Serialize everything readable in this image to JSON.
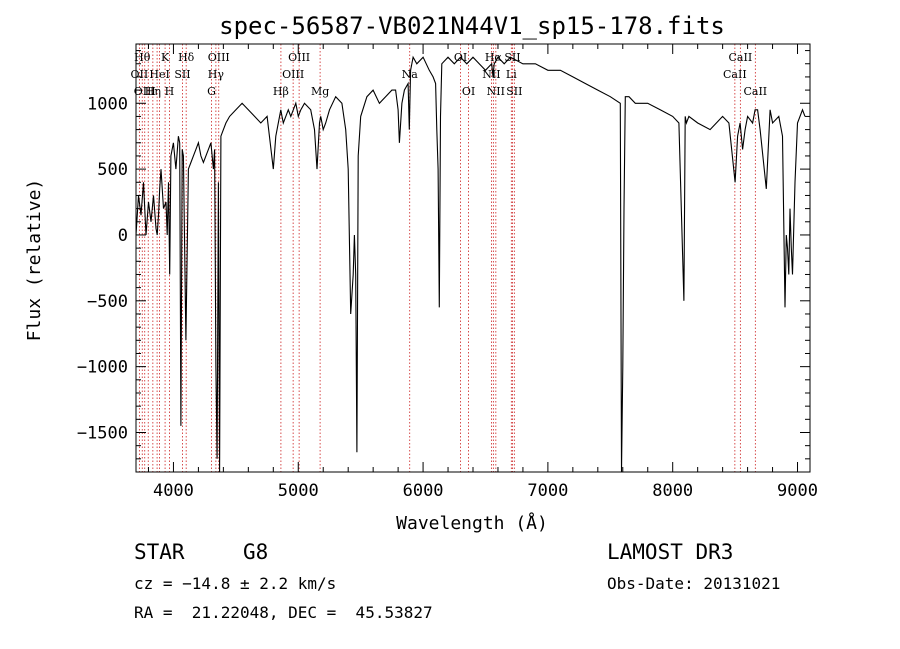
{
  "chart_data": {
    "type": "line",
    "title": "spec-56587-VB021N44V1_sp15-178.fits",
    "xlabel": "Wavelength (Å)",
    "ylabel": "Flux (relative)",
    "xlim": [
      3700,
      9100
    ],
    "ylim": [
      -1800,
      1450
    ],
    "xticks": [
      4000,
      5000,
      6000,
      7000,
      8000,
      9000
    ],
    "yticks": [
      -1500,
      -1000,
      -500,
      0,
      500,
      1000
    ],
    "xtick_labels": [
      "4000",
      "5000",
      "6000",
      "7000",
      "8000",
      "9000"
    ],
    "ytick_labels": [
      "−1500",
      "−1000",
      "−500",
      "0",
      "500",
      "1000"
    ],
    "grid": false,
    "series": [
      {
        "x": [
          3700,
          3720,
          3740,
          3760,
          3780,
          3800,
          3820,
          3840,
          3860,
          3870,
          3880,
          3890,
          3900,
          3920,
          3940,
          3950,
          3960,
          3970,
          3980,
          4000,
          4020,
          4040,
          4050,
          4060,
          4070,
          4080,
          4100,
          4120,
          4140,
          4160,
          4180,
          4200,
          4220,
          4240,
          4260,
          4280,
          4300,
          4320,
          4330,
          4340,
          4350,
          4360,
          4370,
          4380,
          4400,
          4420,
          4450,
          4500,
          4550,
          4600,
          4650,
          4700,
          4750,
          4800,
          4820,
          4840,
          4860,
          4870,
          4880,
          4900,
          4920,
          4940,
          4960,
          4980,
          5000,
          5020,
          5050,
          5100,
          5130,
          5150,
          5170,
          5180,
          5190,
          5200,
          5220,
          5250,
          5300,
          5350,
          5380,
          5400,
          5420,
          5440,
          5450,
          5460,
          5470,
          5480,
          5500,
          5550,
          5600,
          5650,
          5700,
          5750,
          5780,
          5800,
          5810,
          5830,
          5850,
          5880,
          5890,
          5900,
          5920,
          5950,
          6000,
          6050,
          6080,
          6100,
          6110,
          6120,
          6130,
          6140,
          6150,
          6200,
          6250,
          6300,
          6350,
          6400,
          6450,
          6500,
          6550,
          6560,
          6570,
          6600,
          6650,
          6700,
          6800,
          6900,
          7000,
          7100,
          7200,
          7300,
          7400,
          7500,
          7580,
          7590,
          7600,
          7610,
          7620,
          7650,
          7700,
          7800,
          7900,
          8000,
          8050,
          8090,
          8100,
          8110,
          8130,
          8200,
          8300,
          8400,
          8450,
          8500,
          8520,
          8540,
          8560,
          8580,
          8600,
          8640,
          8660,
          8680,
          8700,
          8750,
          8780,
          8800,
          8850,
          8880,
          8900,
          8910,
          8920,
          8930,
          8940,
          8950,
          8960,
          8980,
          9000,
          9040,
          9060
        ],
        "y": [
          0,
          300,
          150,
          400,
          0,
          250,
          100,
          300,
          50,
          0,
          150,
          350,
          500,
          200,
          250,
          0,
          400,
          -300,
          600,
          700,
          500,
          750,
          700,
          -1450,
          650,
          600,
          -800,
          500,
          550,
          600,
          650,
          700,
          600,
          550,
          600,
          650,
          700,
          500,
          650,
          -1000,
          -1700,
          400,
          -1800,
          750,
          800,
          850,
          900,
          950,
          1000,
          950,
          900,
          850,
          900,
          500,
          750,
          850,
          950,
          900,
          850,
          900,
          950,
          900,
          950,
          1000,
          900,
          950,
          1000,
          950,
          800,
          500,
          850,
          900,
          850,
          800,
          850,
          950,
          1050,
          1000,
          800,
          500,
          -600,
          -300,
          0,
          -300,
          -1650,
          600,
          900,
          1050,
          1100,
          1000,
          1050,
          1100,
          1100,
          950,
          700,
          1000,
          1100,
          1150,
          800,
          1250,
          1350,
          1300,
          1350,
          1250,
          1200,
          1150,
          800,
          500,
          -550,
          900,
          1300,
          1350,
          1300,
          1350,
          1300,
          1350,
          1300,
          1250,
          1300,
          1200,
          1300,
          1350,
          1300,
          1350,
          1300,
          1300,
          1250,
          1250,
          1200,
          1150,
          1100,
          1050,
          1000,
          -1800,
          -1000,
          200,
          1050,
          1050,
          1000,
          1000,
          950,
          900,
          850,
          -500,
          900,
          850,
          900,
          850,
          800,
          900,
          850,
          400,
          750,
          850,
          650,
          800,
          900,
          850,
          950,
          950,
          800,
          350,
          950,
          850,
          900,
          750,
          -550,
          0,
          -100,
          -300,
          200,
          -100,
          -300,
          400,
          850,
          950,
          900
        ]
      }
    ],
    "markers": [
      {
        "x": 3727,
        "label": "OII",
        "label_level": 2
      },
      {
        "x": 3750,
        "label": "Hθ",
        "label_level": 1
      },
      {
        "x": 3770,
        "label": "OIII",
        "label_level": 3
      },
      {
        "x": 3798,
        "label": "",
        "label_level": 0
      },
      {
        "x": 3835,
        "label": "Hη",
        "label_level": 3
      },
      {
        "x": 3869,
        "label": "",
        "label_level": 0
      },
      {
        "x": 3889,
        "label": "HeI",
        "label_level": 2
      },
      {
        "x": 3933,
        "label": "K",
        "label_level": 1
      },
      {
        "x": 3968,
        "label": "H",
        "label_level": 3
      },
      {
        "x": 4072,
        "label": "SII",
        "label_level": 2
      },
      {
        "x": 4102,
        "label": "Hδ",
        "label_level": 1
      },
      {
        "x": 4340,
        "label": "Hγ",
        "label_level": 2
      },
      {
        "x": 4363,
        "label": "OIII",
        "label_level": 1
      },
      {
        "x": 4305,
        "label": "G",
        "label_level": 3
      },
      {
        "x": 4861,
        "label": "Hβ",
        "label_level": 3
      },
      {
        "x": 4959,
        "label": "OIII",
        "label_level": 2
      },
      {
        "x": 5007,
        "label": "OIII",
        "label_level": 1
      },
      {
        "x": 5175,
        "label": "Mg",
        "label_level": 3
      },
      {
        "x": 5893,
        "label": "Na",
        "label_level": 2
      },
      {
        "x": 6300,
        "label": "OI",
        "label_level": 1
      },
      {
        "x": 6364,
        "label": "OI",
        "label_level": 3
      },
      {
        "x": 6548,
        "label": "NII",
        "label_level": 2
      },
      {
        "x": 6563,
        "label": "Hα",
        "label_level": 1
      },
      {
        "x": 6583,
        "label": "NII",
        "label_level": 3
      },
      {
        "x": 6707,
        "label": "Li",
        "label_level": 2
      },
      {
        "x": 6716,
        "label": "SII",
        "label_level": 1
      },
      {
        "x": 6731,
        "label": "SII",
        "label_level": 3
      },
      {
        "x": 8498,
        "label": "CaII",
        "label_level": 2
      },
      {
        "x": 8542,
        "label": "CaII",
        "label_level": 1
      },
      {
        "x": 8662,
        "label": "CaII",
        "label_level": 3
      }
    ]
  },
  "info": {
    "object_class": "STAR",
    "subclass": "G8",
    "survey": "LAMOST DR3",
    "redshift": "cz = −14.8 ± 2.2 km/s",
    "obs_date": "Obs-Date: 20131021",
    "coords": "RA =  21.22048, DEC =  45.53827"
  },
  "colors": {
    "spectrum": "#000000",
    "markers": "#cc2222",
    "axes": "#000000"
  }
}
